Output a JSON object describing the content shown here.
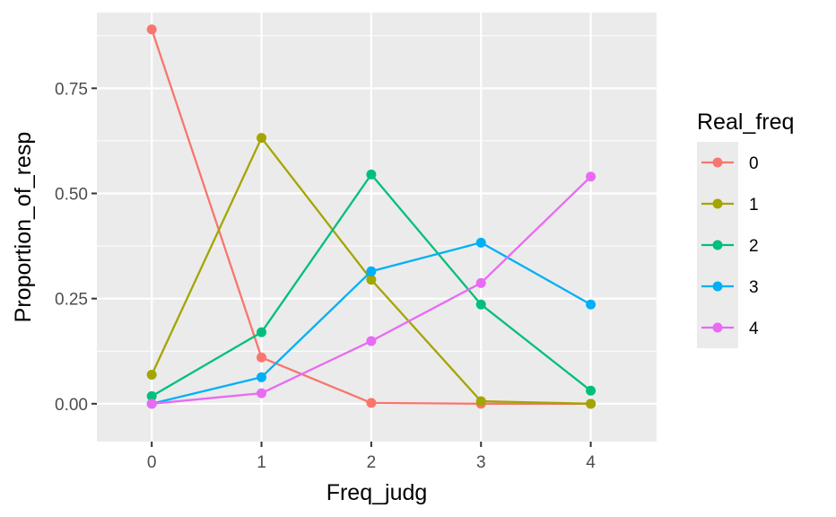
{
  "chart_data": {
    "type": "line",
    "xlabel": "Freq_judg",
    "ylabel": "Proportion_of_resp",
    "x": [
      0,
      1,
      2,
      3,
      4
    ],
    "xlim": [
      -0.5,
      4.6
    ],
    "ylim": [
      -0.09,
      0.93
    ],
    "xticks": [
      "0",
      "1",
      "2",
      "3",
      "4"
    ],
    "yticks": [
      "0.00",
      "0.25",
      "0.50",
      "0.75"
    ],
    "ytick_values": [
      0,
      0.25,
      0.5,
      0.75
    ],
    "grid": true,
    "legend": {
      "title": "Real_freq",
      "placement": "right"
    },
    "series": [
      {
        "name": "0",
        "color": "#F8766D",
        "values": [
          0.89,
          0.11,
          0.002,
          0.0,
          0.0
        ]
      },
      {
        "name": "1",
        "color": "#A3A500",
        "values": [
          0.069,
          0.632,
          0.295,
          0.006,
          0.0
        ]
      },
      {
        "name": "2",
        "color": "#00BF7D",
        "values": [
          0.018,
          0.17,
          0.545,
          0.236,
          0.031
        ]
      },
      {
        "name": "3",
        "color": "#00B0F6",
        "values": [
          0.0,
          0.063,
          0.315,
          0.383,
          0.236
        ]
      },
      {
        "name": "4",
        "color": "#E76BF3",
        "values": [
          0.0,
          0.025,
          0.149,
          0.287,
          0.54
        ]
      }
    ]
  }
}
